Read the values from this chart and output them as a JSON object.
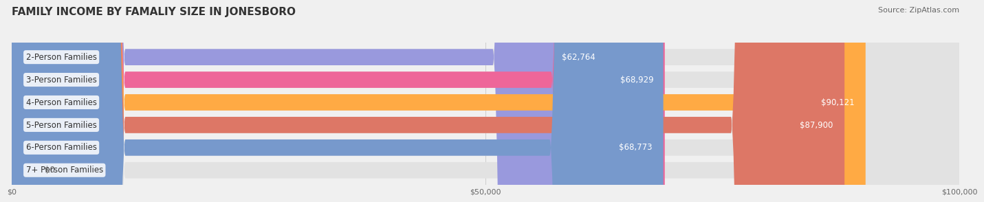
{
  "title": "FAMILY INCOME BY FAMALIY SIZE IN JONESBORO",
  "source": "Source: ZipAtlas.com",
  "categories": [
    "2-Person Families",
    "3-Person Families",
    "4-Person Families",
    "5-Person Families",
    "6-Person Families",
    "7+ Person Families"
  ],
  "values": [
    62764,
    68929,
    90121,
    87900,
    68773,
    0
  ],
  "bar_colors": [
    "#9999dd",
    "#ee6699",
    "#ffaa44",
    "#dd7766",
    "#7799cc",
    "#ccaacc"
  ],
  "value_labels": [
    "$62,764",
    "$68,929",
    "$90,121",
    "$87,900",
    "$68,773",
    "$0"
  ],
  "xmax": 100000,
  "xticks": [
    0,
    50000,
    100000
  ],
  "xticklabels": [
    "$0",
    "$50,000",
    "$100,000"
  ],
  "background_color": "#f0f0f0",
  "bar_bg_color": "#e2e2e2",
  "title_fontsize": 11,
  "source_fontsize": 8,
  "label_fontsize": 8.5,
  "value_fontsize": 8.5
}
